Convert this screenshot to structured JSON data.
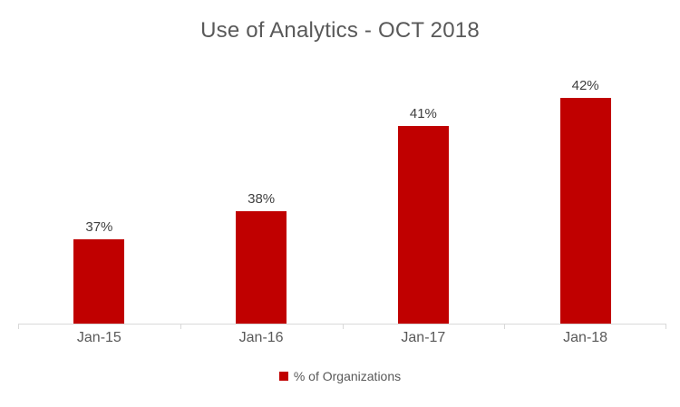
{
  "chart_data": {
    "type": "bar",
    "title": "Use of Analytics - OCT 2018",
    "categories": [
      "Jan-15",
      "Jan-16",
      "Jan-17",
      "Jan-18"
    ],
    "series": [
      {
        "name": "% of Organizations",
        "values": [
          37,
          38,
          41,
          42
        ]
      }
    ],
    "data_labels": [
      "37%",
      "38%",
      "41%",
      "42%"
    ],
    "xlabel": "",
    "ylabel": "",
    "ylim": [
      34,
      43
    ],
    "y_axis_visible": false,
    "grid": false,
    "legend_position": "bottom",
    "bar_color": "#c00000",
    "title_color": "#595959",
    "data_label_color": "#404040",
    "tick_label_color": "#595959",
    "axis_line_color": "#d9d9d9"
  },
  "legend": {
    "label": "% of Organizations",
    "marker_color": "#c00000"
  }
}
